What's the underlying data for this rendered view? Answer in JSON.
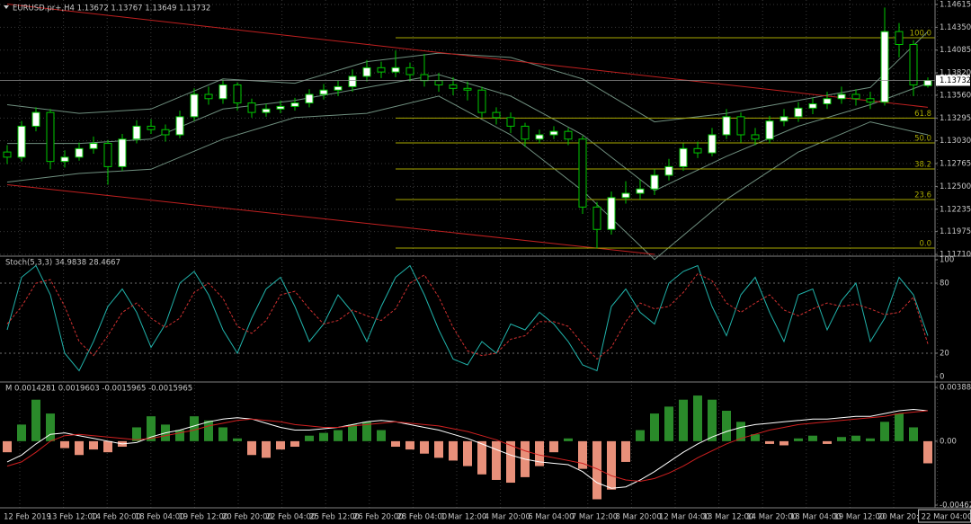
{
  "chart_data": [
    {
      "type": "candlestick",
      "title": "EURUSD.pr+,H4 1.13672 1.13767 1.13649 1.13732",
      "candles": [
        [
          1.129,
          1.1298,
          1.1276,
          1.1284
        ],
        [
          1.1284,
          1.1326,
          1.1279,
          1.132
        ],
        [
          1.132,
          1.1342,
          1.1314,
          1.1336
        ],
        [
          1.1336,
          1.134,
          1.127,
          1.1279
        ],
        [
          1.1279,
          1.1292,
          1.1272,
          1.1284
        ],
        [
          1.1284,
          1.1301,
          1.128,
          1.1294
        ],
        [
          1.1294,
          1.1308,
          1.1288,
          1.13
        ],
        [
          1.13,
          1.1304,
          1.1252,
          1.1273
        ],
        [
          1.1273,
          1.1311,
          1.1268,
          1.1305
        ],
        [
          1.1305,
          1.1327,
          1.13,
          1.132
        ],
        [
          1.132,
          1.1328,
          1.1311,
          1.1316
        ],
        [
          1.1316,
          1.1322,
          1.1302,
          1.131
        ],
        [
          1.131,
          1.1338,
          1.1306,
          1.1331
        ],
        [
          1.1331,
          1.1364,
          1.1326,
          1.1357
        ],
        [
          1.1357,
          1.1366,
          1.1345,
          1.1352
        ],
        [
          1.1352,
          1.1374,
          1.1346,
          1.1368
        ],
        [
          1.1368,
          1.1371,
          1.1338,
          1.1347
        ],
        [
          1.1347,
          1.1352,
          1.133,
          1.1336
        ],
        [
          1.1336,
          1.1346,
          1.1331,
          1.134
        ],
        [
          1.134,
          1.135,
          1.1335,
          1.1343
        ],
        [
          1.1343,
          1.1353,
          1.1338,
          1.1347
        ],
        [
          1.1347,
          1.1363,
          1.1342,
          1.1357
        ],
        [
          1.1357,
          1.1369,
          1.1351,
          1.1362
        ],
        [
          1.1362,
          1.1373,
          1.1355,
          1.1366
        ],
        [
          1.1366,
          1.1386,
          1.136,
          1.1378
        ],
        [
          1.1378,
          1.1397,
          1.1372,
          1.1388
        ],
        [
          1.1388,
          1.1395,
          1.1376,
          1.1383
        ],
        [
          1.1383,
          1.1408,
          1.1377,
          1.1388
        ],
        [
          1.1388,
          1.1394,
          1.1372,
          1.138
        ],
        [
          1.138,
          1.1404,
          1.1366,
          1.1373
        ],
        [
          1.1373,
          1.1382,
          1.136,
          1.1368
        ],
        [
          1.1368,
          1.1377,
          1.1356,
          1.1364
        ],
        [
          1.1364,
          1.1372,
          1.135,
          1.1362
        ],
        [
          1.1362,
          1.1366,
          1.133,
          1.1336
        ],
        [
          1.1336,
          1.1342,
          1.1322,
          1.133
        ],
        [
          1.133,
          1.1336,
          1.1312,
          1.132
        ],
        [
          1.132,
          1.1324,
          1.1296,
          1.1305
        ],
        [
          1.1305,
          1.1316,
          1.13,
          1.131
        ],
        [
          1.131,
          1.132,
          1.1305,
          1.1314
        ],
        [
          1.1314,
          1.1318,
          1.1298,
          1.1305
        ],
        [
          1.1305,
          1.1309,
          1.1218,
          1.1226
        ],
        [
          1.1226,
          1.1232,
          1.1178,
          1.12
        ],
        [
          1.12,
          1.1244,
          1.1194,
          1.1237
        ],
        [
          1.1237,
          1.1256,
          1.123,
          1.1242
        ],
        [
          1.1242,
          1.1258,
          1.1235,
          1.1247
        ],
        [
          1.1247,
          1.127,
          1.124,
          1.1263
        ],
        [
          1.1263,
          1.1282,
          1.1257,
          1.1273
        ],
        [
          1.1273,
          1.13,
          1.1268,
          1.1294
        ],
        [
          1.1294,
          1.1302,
          1.1283,
          1.1289
        ],
        [
          1.1289,
          1.1318,
          1.1285,
          1.131
        ],
        [
          1.131,
          1.134,
          1.1305,
          1.1331
        ],
        [
          1.1331,
          1.1336,
          1.1301,
          1.131
        ],
        [
          1.131,
          1.1318,
          1.1298,
          1.1305
        ],
        [
          1.1305,
          1.1332,
          1.13,
          1.1326
        ],
        [
          1.1326,
          1.134,
          1.132,
          1.1331
        ],
        [
          1.1331,
          1.1348,
          1.1325,
          1.1341
        ],
        [
          1.1341,
          1.1353,
          1.1334,
          1.1346
        ],
        [
          1.1346,
          1.136,
          1.134,
          1.1352
        ],
        [
          1.1352,
          1.1366,
          1.1346,
          1.1357
        ],
        [
          1.1357,
          1.1363,
          1.1344,
          1.1352
        ],
        [
          1.1352,
          1.136,
          1.134,
          1.1348
        ],
        [
          1.1348,
          1.1458,
          1.1344,
          1.143
        ],
        [
          1.143,
          1.144,
          1.14,
          1.1415
        ],
        [
          1.1415,
          1.142,
          1.1355,
          1.1368
        ],
        [
          1.13672,
          1.13767,
          1.13649,
          1.13732
        ]
      ],
      "up_color": "#ffffff",
      "down_color": "#000000",
      "outline_color": "#00c800",
      "ylim": [
        1.1171,
        1.14615
      ],
      "yticks": [
        1.14615,
        {
          "value": 1.1435,
          "label": "1.14350"
        },
        1.14085,
        {
          "value": 1.1382,
          "label": "1.13820"
        },
        {
          "value": 1.1356,
          "label": "1.13560"
        },
        1.13295,
        {
          "value": 1.1303,
          "label": "1.13030"
        },
        1.12765,
        {
          "value": 1.125,
          "label": "1.12500"
        },
        1.12235,
        1.11975,
        {
          "value": 1.1171,
          "label": "1.11710"
        }
      ],
      "grid": true,
      "current_price": 1.13732,
      "bands": {
        "color": "#6f8f7f",
        "index": [
          0,
          5,
          10,
          15,
          20,
          25,
          30,
          35,
          40,
          45,
          50,
          55,
          60,
          64
        ],
        "upper": [
          1.1345,
          1.1335,
          1.134,
          1.1375,
          1.137,
          1.1395,
          1.1405,
          1.14,
          1.1375,
          1.1325,
          1.1335,
          1.135,
          1.1365,
          1.143
        ],
        "middle": [
          1.13,
          1.13,
          1.1305,
          1.134,
          1.135,
          1.1365,
          1.138,
          1.1355,
          1.131,
          1.1245,
          1.1285,
          1.132,
          1.1345,
          1.137
        ],
        "lower": [
          1.1255,
          1.1265,
          1.127,
          1.1305,
          1.133,
          1.1335,
          1.1355,
          1.131,
          1.1245,
          1.1165,
          1.1235,
          1.129,
          1.1325,
          1.131
        ]
      },
      "trendlines": [
        {
          "color": "#c02020",
          "points": [
            [
              0,
              1.1462
            ],
            [
              64,
              1.1342
            ]
          ]
        },
        {
          "color": "#c02020",
          "points": [
            [
              0,
              1.1252
            ],
            [
              45,
              1.1171
            ]
          ]
        }
      ],
      "fibonacci": {
        "color": "#a8a800",
        "start_index": 27,
        "levels": [
          {
            "label": "100.0",
            "price": 1.14228
          },
          {
            "label": "61.8",
            "price": 1.13294
          },
          {
            "label": "50.0",
            "price": 1.13006
          },
          {
            "label": "38.2",
            "price": 1.12703
          },
          {
            "label": "23.6",
            "price": 1.12347
          },
          {
            "label": "0.0",
            "price": 1.11783
          }
        ]
      }
    },
    {
      "type": "line",
      "title": "Stoch(5,3,3) 34.9838 28.4667",
      "ylim": [
        0,
        100
      ],
      "yticks": [
        100,
        80,
        20,
        0
      ],
      "levels": [
        80,
        20
      ],
      "series": [
        {
          "color": "#20b2aa",
          "values": [
            40,
            85,
            95,
            70,
            20,
            5,
            30,
            60,
            75,
            55,
            25,
            45,
            80,
            90,
            70,
            40,
            20,
            50,
            75,
            85,
            60,
            30,
            45,
            70,
            55,
            30,
            60,
            85,
            95,
            70,
            40,
            15,
            10,
            30,
            20,
            45,
            40,
            55,
            45,
            30,
            10,
            5,
            60,
            75,
            55,
            45,
            80,
            90,
            95,
            60,
            35,
            70,
            85,
            55,
            30,
            70,
            75,
            40,
            65,
            80,
            30,
            50,
            85,
            70,
            35
          ]
        },
        {
          "color": "#d03030",
          "dashed": true,
          "values": [
            45,
            60,
            80,
            83,
            60,
            30,
            18,
            35,
            55,
            63,
            50,
            42,
            50,
            72,
            80,
            67,
            43,
            37,
            48,
            70,
            73,
            58,
            45,
            48,
            57,
            52,
            48,
            58,
            80,
            87,
            68,
            42,
            22,
            18,
            20,
            32,
            35,
            47,
            47,
            43,
            28,
            15,
            25,
            47,
            63,
            58,
            60,
            72,
            88,
            82,
            63,
            55,
            63,
            70,
            57,
            52,
            58,
            63,
            60,
            62,
            58,
            53,
            55,
            68,
            28
          ]
        }
      ]
    },
    {
      "type": "bar",
      "title": "M 0.0014281 0.0019603 -0.0015965 -0.0015965",
      "ylim": [
        -0.004622,
        0.0038893
      ],
      "yticks": [
        0.0038893,
        {
          "value": 0,
          "label": "0.00"
        },
        -0.004622
      ],
      "pos_color": "#2a8a2a",
      "neg_color": "#e8907a",
      "values": [
        -0.0008,
        0.0012,
        0.003,
        0.002,
        -0.0005,
        -0.001,
        -0.0006,
        -0.0008,
        -0.0004,
        0.001,
        0.0018,
        0.0012,
        0.0008,
        0.0018,
        0.0015,
        0.001,
        0.0002,
        -0.001,
        -0.0012,
        -0.0006,
        -0.0004,
        0.0004,
        0.0006,
        0.0008,
        0.0012,
        0.0014,
        0.0008,
        -0.0004,
        -0.0006,
        -0.0009,
        -0.0012,
        -0.0014,
        -0.0018,
        -0.0024,
        -0.0028,
        -0.003,
        -0.0026,
        -0.0018,
        -0.0008,
        0.0002,
        -0.002,
        -0.0042,
        -0.0035,
        -0.0015,
        0.0008,
        0.002,
        0.0025,
        0.003,
        0.0033,
        0.003,
        0.0022,
        0.0014,
        0.0005,
        -0.0002,
        -0.0003,
        0.0002,
        0.0004,
        -0.0002,
        0.0003,
        0.0004,
        0.0002,
        0.0014,
        0.002,
        0.001,
        -0.0016
      ],
      "series": [
        {
          "color": "#ffffff",
          "values": [
            -0.0015,
            -0.001,
            -0.0002,
            0.0005,
            0.0006,
            0.0004,
            0.0002,
            0.0,
            -0.0002,
            -0.0001,
            0.0003,
            0.0006,
            0.0008,
            0.0011,
            0.0014,
            0.0016,
            0.0017,
            0.0016,
            0.0013,
            0.001,
            0.0008,
            0.0008,
            0.0009,
            0.001,
            0.0012,
            0.0014,
            0.0015,
            0.0014,
            0.0012,
            0.001,
            0.0008,
            0.0005,
            0.0002,
            -0.0002,
            -0.0006,
            -0.001,
            -0.0013,
            -0.0015,
            -0.0016,
            -0.0017,
            -0.0022,
            -0.003,
            -0.0034,
            -0.0033,
            -0.0028,
            -0.0022,
            -0.0015,
            -0.0008,
            -0.0002,
            0.0003,
            0.0007,
            0.001,
            0.0012,
            0.0013,
            0.0014,
            0.0015,
            0.0016,
            0.0016,
            0.0017,
            0.0018,
            0.0018,
            0.002,
            0.0022,
            0.0023,
            0.0022
          ]
        },
        {
          "color": "#d02020",
          "values": [
            -0.0018,
            -0.0015,
            -0.0008,
            0.0,
            0.0004,
            0.0005,
            0.0004,
            0.0003,
            0.0002,
            0.0001,
            0.0002,
            0.0004,
            0.0006,
            0.0008,
            0.0011,
            0.0013,
            0.0015,
            0.0016,
            0.0015,
            0.0014,
            0.0012,
            0.0011,
            0.001,
            0.001,
            0.0011,
            0.0012,
            0.0013,
            0.0014,
            0.0013,
            0.0012,
            0.0011,
            0.0009,
            0.0007,
            0.0004,
            0.0001,
            -0.0003,
            -0.0007,
            -0.001,
            -0.0012,
            -0.0014,
            -0.0016,
            -0.002,
            -0.0025,
            -0.0028,
            -0.0029,
            -0.0027,
            -0.0023,
            -0.0018,
            -0.0012,
            -0.0007,
            -0.0002,
            0.0002,
            0.0005,
            0.0008,
            0.001,
            0.0012,
            0.0013,
            0.0014,
            0.0015,
            0.0016,
            0.0017,
            0.0018,
            0.002,
            0.0021,
            0.0022
          ]
        }
      ],
      "time_labels": [
        "12 Feb 2019",
        "13 Feb 12:00",
        "14 Feb 20:00",
        "18 Feb 04:00",
        "19 Feb 12:00",
        "20 Feb 20:00",
        "22 Feb 04:00",
        "25 Feb 12:00",
        "26 Feb 20:00",
        "28 Feb 04:00",
        "1 Mar 12:00",
        "4 Mar 20:00",
        "6 Mar 04:00",
        "7 Mar 12:00",
        "8 Mar 20:00",
        "12 Mar 04:00",
        "13 Mar 12:00",
        "14 Mar 20:00",
        "18 Mar 04:00",
        "19 Mar 12:00",
        "20 Mar 20:00",
        "22 Mar 04:00"
      ]
    }
  ]
}
